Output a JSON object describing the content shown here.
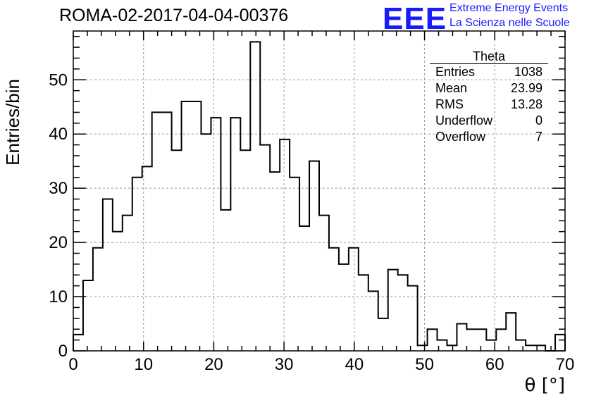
{
  "header": {
    "run_title": "ROMA-02-2017-04-04-00376",
    "logo": "EEE",
    "logo_line1": "Extreme Energy Events",
    "logo_line2": "La Scienza nelle Scuole"
  },
  "stats_box": {
    "title": "Theta",
    "rows": [
      {
        "label": "Entries",
        "value": "1038"
      },
      {
        "label": "Mean",
        "value": "23.99"
      },
      {
        "label": "RMS",
        "value": "13.28"
      },
      {
        "label": "Underflow",
        "value": "0"
      },
      {
        "label": "Overflow",
        "value": "7"
      }
    ]
  },
  "chart_data": {
    "type": "bar",
    "style": "step-histogram",
    "title": "ROMA-02-2017-04-04-00376",
    "xlabel": "θ [°]",
    "ylabel": "Entries/bin",
    "xlim": [
      0,
      70
    ],
    "ylim": [
      0,
      59
    ],
    "bin_width": 1.4,
    "x_ticks": [
      "0",
      "10",
      "20",
      "30",
      "40",
      "50",
      "60",
      "70"
    ],
    "y_ticks": [
      "0",
      "10",
      "20",
      "30",
      "40",
      "50"
    ],
    "grid": true,
    "bin_start": 0,
    "values": [
      3,
      13,
      19,
      28,
      22,
      25,
      32,
      34,
      44,
      44,
      37,
      46,
      46,
      40,
      43,
      26,
      43,
      37,
      57,
      38,
      33,
      39,
      32,
      23,
      35,
      25,
      19,
      16,
      19,
      14,
      11,
      6,
      15,
      14,
      12,
      1,
      4,
      2,
      1,
      5,
      4,
      4,
      2,
      4,
      7,
      2,
      1,
      1,
      0,
      3
    ]
  }
}
